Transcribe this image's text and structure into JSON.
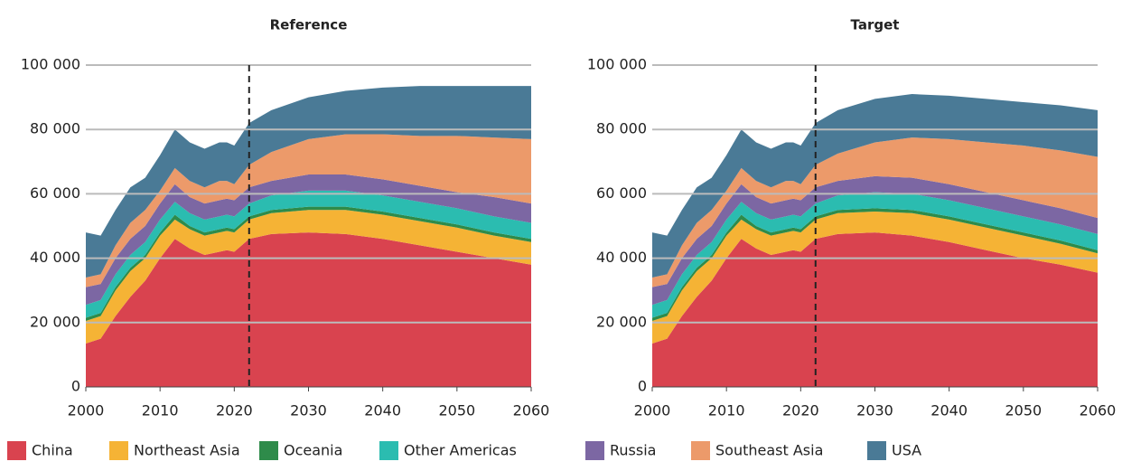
{
  "chart_data": [
    {
      "type": "stacked_area",
      "title": "Reference",
      "x": [
        2000,
        2002,
        2004,
        2006,
        2008,
        2010,
        2012,
        2014,
        2016,
        2018,
        2019,
        2020,
        2022,
        2025,
        2030,
        2035,
        2040,
        2045,
        2050,
        2055,
        2060
      ],
      "xlim": [
        2000,
        2060
      ],
      "xticks": [
        2000,
        2010,
        2020,
        2030,
        2040,
        2050,
        2060
      ],
      "ylim": [
        0,
        100000
      ],
      "yticks": [
        0,
        {
          "value": 20000,
          "label": "20 000"
        },
        {
          "value": 40000,
          "label": "40 000"
        },
        {
          "value": 60000,
          "label": "60 000"
        },
        {
          "value": 80000,
          "label": "80 000"
        },
        {
          "value": 100000,
          "label": "100 000"
        }
      ],
      "grid": true,
      "vline": 2022,
      "series": [
        {
          "name": "China",
          "color": "#d9434f",
          "values": [
            13500,
            15000,
            22000,
            28000,
            33000,
            40000,
            46000,
            43000,
            41000,
            42000,
            42500,
            42000,
            46000,
            47500,
            48000,
            47500,
            46000,
            44000,
            42000,
            40000,
            38000
          ]
        },
        {
          "name": "Northeast Asia",
          "color": "#f5b335",
          "values": [
            7000,
            7000,
            8000,
            8000,
            7000,
            7000,
            6000,
            6000,
            6000,
            6000,
            6000,
            6000,
            6000,
            6500,
            7000,
            7500,
            7500,
            7500,
            7500,
            7000,
            7000
          ]
        },
        {
          "name": "Oceania",
          "color": "#2e8b4a",
          "values": [
            1000,
            1000,
            1000,
            1000,
            1000,
            1000,
            1500,
            1000,
            1000,
            1000,
            1000,
            1000,
            1000,
            1000,
            1000,
            1000,
            1000,
            1000,
            1000,
            1000,
            1000
          ]
        },
        {
          "name": "Other Americas",
          "color": "#2bbcb0",
          "values": [
            4000,
            4000,
            4000,
            4000,
            4000,
            4000,
            4000,
            4000,
            4000,
            4000,
            4000,
            4000,
            4000,
            4500,
            5000,
            5000,
            5000,
            5000,
            5000,
            5000,
            5000
          ]
        },
        {
          "name": "Russia",
          "color": "#7c67a3",
          "values": [
            5500,
            5000,
            5000,
            5000,
            5000,
            5000,
            5500,
            5000,
            5000,
            5000,
            5000,
            5000,
            5000,
            4500,
            5000,
            5000,
            5000,
            5000,
            5000,
            6000,
            6000
          ]
        },
        {
          "name": "Southeast Asia",
          "color": "#ec9a6a",
          "values": [
            3000,
            3000,
            4000,
            5000,
            5000,
            4000,
            5000,
            5000,
            5000,
            6000,
            5500,
            5000,
            7000,
            9000,
            11000,
            12500,
            14000,
            15500,
            17500,
            18500,
            20000
          ]
        },
        {
          "name": "USA",
          "color": "#4a7a96",
          "values": [
            14000,
            12000,
            11000,
            11000,
            10000,
            11000,
            12000,
            12000,
            12000,
            12000,
            12000,
            12000,
            13000,
            13000,
            13000,
            13500,
            14500,
            15500,
            15500,
            16000,
            16500
          ]
        }
      ]
    },
    {
      "type": "stacked_area",
      "title": "Target",
      "x": [
        2000,
        2002,
        2004,
        2006,
        2008,
        2010,
        2012,
        2014,
        2016,
        2018,
        2019,
        2020,
        2022,
        2025,
        2030,
        2035,
        2040,
        2045,
        2050,
        2055,
        2060
      ],
      "xlim": [
        2000,
        2060
      ],
      "xticks": [
        2000,
        2010,
        2020,
        2030,
        2040,
        2050,
        2060
      ],
      "ylim": [
        0,
        100000
      ],
      "yticks": [
        0,
        {
          "value": 20000,
          "label": "20 000"
        },
        {
          "value": 40000,
          "label": "40 000"
        },
        {
          "value": 60000,
          "label": "60 000"
        },
        {
          "value": 80000,
          "label": "80 000"
        },
        {
          "value": 100000,
          "label": "100 000"
        }
      ],
      "grid": true,
      "vline": 2022,
      "series": [
        {
          "name": "China",
          "values": [
            13500,
            15000,
            22000,
            28000,
            33000,
            40000,
            46000,
            43000,
            41000,
            42000,
            42500,
            42000,
            46000,
            47500,
            48000,
            47000,
            45000,
            42500,
            40000,
            38000,
            35500
          ]
        },
        {
          "name": "Northeast Asia",
          "values": [
            7000,
            7000,
            8000,
            8000,
            7000,
            7000,
            6000,
            6000,
            6000,
            6000,
            6000,
            6000,
            6000,
            6500,
            6500,
            7000,
            7000,
            7000,
            7000,
            6500,
            6000
          ]
        },
        {
          "name": "Oceania",
          "values": [
            1000,
            1000,
            1000,
            1000,
            1000,
            1000,
            1500,
            1000,
            1000,
            1000,
            1000,
            1000,
            1000,
            1000,
            1000,
            1000,
            1000,
            1000,
            1000,
            1000,
            1000
          ]
        },
        {
          "name": "Other Americas",
          "values": [
            4000,
            4000,
            4000,
            4000,
            4000,
            4000,
            4000,
            4000,
            4000,
            4000,
            4000,
            4000,
            4000,
            4500,
            5000,
            5000,
            5000,
            5000,
            5000,
            5000,
            5000
          ]
        },
        {
          "name": "Russia",
          "values": [
            5500,
            5000,
            5000,
            5000,
            5000,
            5000,
            5500,
            5000,
            5000,
            5000,
            5000,
            5000,
            5000,
            4500,
            5000,
            5000,
            5000,
            5000,
            5000,
            5000,
            5000
          ]
        },
        {
          "name": "Southeast Asia",
          "values": [
            3000,
            3000,
            4000,
            5000,
            5000,
            4000,
            5000,
            5000,
            5000,
            6000,
            5500,
            5000,
            7000,
            8500,
            10500,
            12500,
            14000,
            15500,
            17000,
            18000,
            19000
          ]
        },
        {
          "name": "USA",
          "values": [
            14000,
            12000,
            11000,
            11000,
            10000,
            11000,
            12000,
            12000,
            12000,
            12000,
            12000,
            12000,
            13000,
            13500,
            13500,
            13500,
            13500,
            13500,
            13500,
            14000,
            14500
          ]
        }
      ]
    }
  ]
}
